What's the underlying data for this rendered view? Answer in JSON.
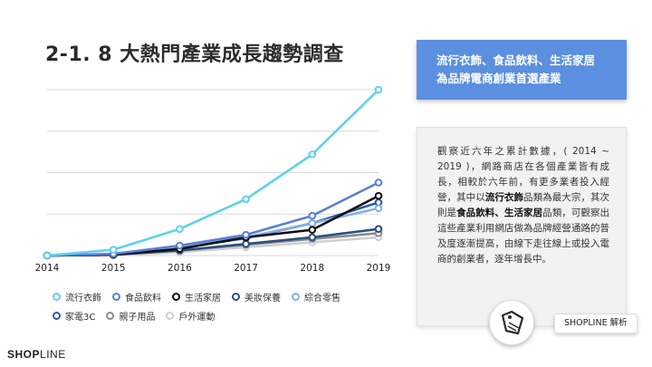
{
  "title": "2-1. 8 大熱門產業成長趨勢調查",
  "callout": {
    "line1": "流行衣飾、食品飲料、生活家居",
    "line2": "為品牌電商創業首選產業"
  },
  "notes": {
    "p1": "觀察近六年之累計數據，( 2014 ~ 2019 )，網路商店在各個產業皆有成長，相較於六年前，有更多業者投入經營，其中以",
    "b1": "流行衣飾",
    "p2": "品類為最大宗，其次則是",
    "b2": "食品飲料、生活家居",
    "p3": "品類，可觀察出這些產業利用網店做為品牌經營通路的普及度逐漸提高，由線下走往線上或投入電商的創業者，逐年增長中。"
  },
  "analysis_tag": "SHOPLINE 解析",
  "brand": {
    "bold": "SHOP",
    "light": "LINE"
  },
  "colors": {
    "callout_bg": "#5b8fdf",
    "grid": "#d9d9d9"
  },
  "chart_data": {
    "type": "line",
    "x": [
      "2014",
      "2015",
      "2016",
      "2017",
      "2018",
      "2019"
    ],
    "ylim": [
      0,
      100
    ],
    "grid": true,
    "legend_placement": "bottom",
    "series": [
      {
        "name": "流行衣飾",
        "color": "#5fd0f0",
        "values": [
          0,
          3.5,
          16,
          34,
          61,
          100
        ]
      },
      {
        "name": "食品飲料",
        "color": "#5a7fd8",
        "values": [
          0,
          1,
          6,
          12.5,
          24,
          44
        ]
      },
      {
        "name": "生活家居",
        "color": "#111111",
        "values": [
          0,
          0.5,
          4,
          11,
          15.5,
          36
        ]
      },
      {
        "name": "美妝保養",
        "color": "#2f4f7f",
        "values": [
          0,
          0.5,
          3,
          7,
          11,
          16
        ]
      },
      {
        "name": "綜合零售",
        "color": "#8aaee6",
        "values": [
          0,
          1,
          5.5,
          11,
          19.5,
          28.5
        ]
      },
      {
        "name": "家電3C",
        "color": "#2a5aa8",
        "values": [
          0,
          0.5,
          4.5,
          10.5,
          19.5,
          32
        ]
      },
      {
        "name": "親子用品",
        "color": "#8c8c8c",
        "values": [
          0,
          0.5,
          3,
          6.5,
          10,
          13.5
        ]
      },
      {
        "name": "戶外運動",
        "color": "#cfcfcf",
        "values": [
          0,
          0.2,
          2,
          5,
          8,
          11
        ]
      }
    ]
  }
}
